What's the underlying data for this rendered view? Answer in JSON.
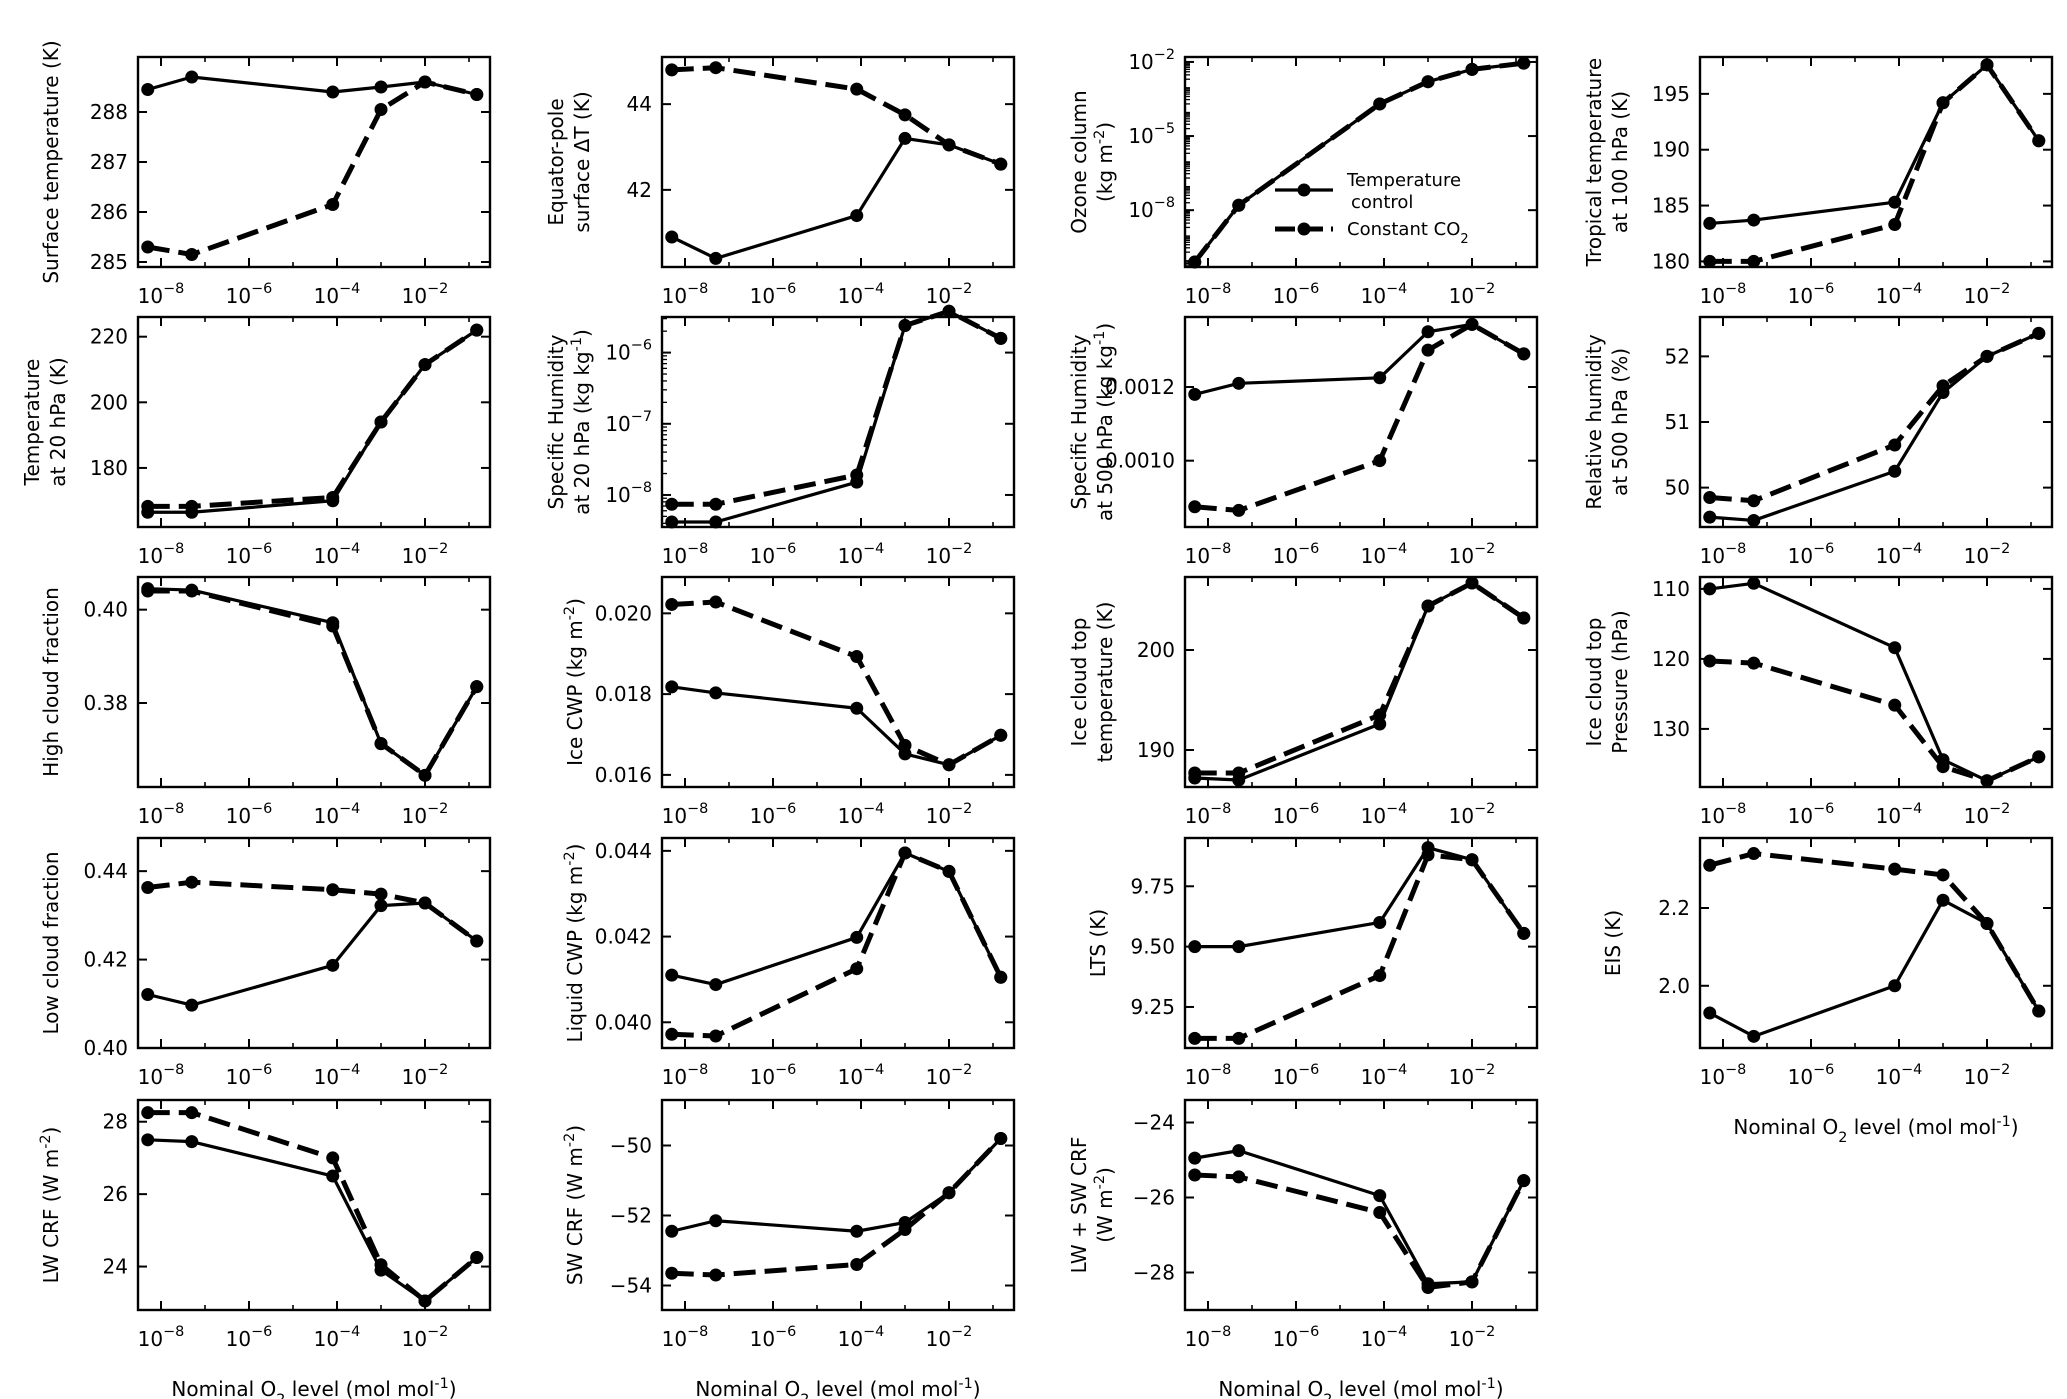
{
  "figure": {
    "legend": {
      "items": [
        {
          "name": "Temperature\ncontrol",
          "style": "solid"
        },
        {
          "name": "Constant CO$2$",
          "style": "dashed"
        }
      ]
    },
    "xlabel": "Nominal O$2$ level (mol mol$^{-1}$)",
    "x_tick_labels": [
      "10^-8",
      "10^-6",
      "10^-4",
      "10^-2"
    ]
  },
  "chart_data": [
    {
      "id": "surface-temperature",
      "type": "line",
      "ylabel": [
        "Surface temperature (K)"
      ],
      "yscale": "linear",
      "ylim": [
        284.9,
        289.1
      ],
      "yticks": [
        285,
        286,
        287,
        288
      ],
      "x": [
        5e-09,
        5e-08,
        8e-05,
        0.001,
        0.01,
        0.15
      ],
      "xlim": [
        3e-09,
        0.3
      ],
      "series": [
        {
          "name": "Temperature control",
          "style": "solid",
          "values": [
            288.45,
            288.7,
            288.4,
            288.5,
            288.6,
            288.35
          ]
        },
        {
          "name": "Constant CO$2$",
          "style": "dashed",
          "values": [
            285.3,
            285.15,
            286.15,
            288.05,
            288.6,
            288.35
          ]
        }
      ]
    },
    {
      "id": "equator-pole-dt",
      "type": "line",
      "ylabel": [
        "Equator-pole",
        "surface ΔT (K)"
      ],
      "yscale": "linear",
      "ylim": [
        40.2,
        45.1
      ],
      "yticks": [
        42,
        44
      ],
      "x": [
        5e-09,
        5e-08,
        8e-05,
        0.001,
        0.01,
        0.15
      ],
      "xlim": [
        3e-09,
        0.3
      ],
      "series": [
        {
          "name": "Temperature control",
          "style": "solid",
          "values": [
            40.9,
            40.4,
            41.4,
            43.2,
            43.05,
            42.6
          ]
        },
        {
          "name": "Constant CO$2$",
          "style": "dashed",
          "values": [
            44.8,
            44.85,
            44.35,
            43.75,
            43.05,
            42.6
          ]
        }
      ]
    },
    {
      "id": "ozone-column",
      "type": "line",
      "ylabel": [
        "Ozone column",
        "(kg m$^{-2}$)"
      ],
      "yscale": "log",
      "ylim": [
        -10.3,
        -1.8
      ],
      "yticks": [
        -8,
        -5,
        -2
      ],
      "x": [
        5e-09,
        5e-08,
        8e-05,
        0.001,
        0.01,
        0.15
      ],
      "xlim": [
        3e-09,
        0.3
      ],
      "series": [
        {
          "name": "Temperature control",
          "style": "solid",
          "values": [
            -10.1,
            -7.8,
            -3.7,
            -2.8,
            -2.3,
            -2.05
          ]
        },
        {
          "name": "Constant CO$2$",
          "style": "dashed",
          "values": [
            -10.1,
            -7.8,
            -3.7,
            -2.8,
            -2.3,
            -2.05
          ]
        }
      ]
    },
    {
      "id": "tropical-temperature-100",
      "type": "line",
      "ylabel": [
        "Tropical temperature",
        "at 100 hPa (K)"
      ],
      "yscale": "linear",
      "ylim": [
        179.5,
        198.3
      ],
      "yticks": [
        180,
        185,
        190,
        195
      ],
      "x": [
        5e-09,
        5e-08,
        8e-05,
        0.001,
        0.01,
        0.15
      ],
      "xlim": [
        3e-09,
        0.3
      ],
      "series": [
        {
          "name": "Temperature control",
          "style": "solid",
          "values": [
            183.4,
            183.7,
            185.3,
            194.2,
            197.6,
            190.8
          ]
        },
        {
          "name": "Constant CO$2$",
          "style": "dashed",
          "values": [
            180.0,
            180.0,
            183.3,
            194.2,
            197.6,
            190.8
          ]
        }
      ]
    },
    {
      "id": "temperature-20hpa",
      "type": "line",
      "ylabel": [
        "Temperature",
        "at 20 hPa (K)"
      ],
      "yscale": "linear",
      "ylim": [
        162,
        226
      ],
      "yticks": [
        180,
        200,
        220
      ],
      "x": [
        5e-09,
        5e-08,
        8e-05,
        0.001,
        0.01,
        0.15
      ],
      "xlim": [
        3e-09,
        0.3
      ],
      "series": [
        {
          "name": "Temperature control",
          "style": "solid",
          "values": [
            166.5,
            166.5,
            170.0,
            194.0,
            211.5,
            222.0
          ]
        },
        {
          "name": "Constant CO$2$",
          "style": "dashed",
          "values": [
            168.3,
            168.3,
            171.0,
            194.0,
            211.5,
            222.0
          ]
        }
      ]
    },
    {
      "id": "specific-humidity-20hpa",
      "type": "line",
      "ylabel": [
        "Specific Humidity",
        "at 20 hPa (kg kg$^{-1}$)"
      ],
      "yscale": "log",
      "ylim": [
        -8.45,
        -5.5
      ],
      "yticks": [
        -8,
        -7,
        -6
      ],
      "x": [
        5e-09,
        5e-08,
        8e-05,
        0.001,
        0.01,
        0.15
      ],
      "xlim": [
        3e-09,
        0.3
      ],
      "series": [
        {
          "name": "Temperature control",
          "style": "solid",
          "values": [
            -8.38,
            -8.38,
            -7.82,
            -5.62,
            -5.42,
            -5.8
          ]
        },
        {
          "name": "Constant CO$2$",
          "style": "dashed",
          "values": [
            -8.13,
            -8.13,
            -7.72,
            -5.62,
            -5.42,
            -5.8
          ]
        }
      ]
    },
    {
      "id": "specific-humidity-500hpa",
      "type": "line",
      "ylabel": [
        "Specific Humidity",
        "at 500 hPa (kg kg$^{-1}$)"
      ],
      "yscale": "linear",
      "ylim": [
        0.00082,
        0.00139
      ],
      "yticks": [
        0.001,
        0.0012
      ],
      "ytick_labels": [
        "0.0010",
        "0.0012"
      ],
      "x": [
        5e-09,
        5e-08,
        8e-05,
        0.001,
        0.01,
        0.15
      ],
      "xlim": [
        3e-09,
        0.3
      ],
      "series": [
        {
          "name": "Temperature control",
          "style": "solid",
          "values": [
            0.00118,
            0.00121,
            0.001225,
            0.00135,
            0.00137,
            0.00129
          ]
        },
        {
          "name": "Constant CO$2$",
          "style": "dashed",
          "values": [
            0.000875,
            0.000865,
            0.001,
            0.0013,
            0.00137,
            0.00129
          ]
        }
      ]
    },
    {
      "id": "relative-humidity-500hpa",
      "type": "line",
      "ylabel": [
        "Relative humidity",
        "at 500 hPa (%)"
      ],
      "yscale": "linear",
      "ylim": [
        49.4,
        52.6
      ],
      "yticks": [
        50,
        51,
        52
      ],
      "x": [
        5e-09,
        5e-08,
        8e-05,
        0.001,
        0.01,
        0.15
      ],
      "xlim": [
        3e-09,
        0.3
      ],
      "series": [
        {
          "name": "Temperature control",
          "style": "solid",
          "values": [
            49.55,
            49.5,
            50.25,
            51.45,
            52.0,
            52.35
          ]
        },
        {
          "name": "Constant CO$2$",
          "style": "dashed",
          "values": [
            49.85,
            49.8,
            50.65,
            51.55,
            52.0,
            52.35
          ]
        }
      ]
    },
    {
      "id": "high-cloud-fraction",
      "type": "line",
      "ylabel": [
        "High cloud fraction"
      ],
      "yscale": "linear",
      "ylim": [
        0.362,
        0.407
      ],
      "yticks": [
        0.38,
        0.4
      ],
      "ytick_labels": [
        "0.38",
        "0.40"
      ],
      "x": [
        5e-09,
        5e-08,
        8e-05,
        0.001,
        0.01,
        0.15
      ],
      "xlim": [
        3e-09,
        0.3
      ],
      "series": [
        {
          "name": "Temperature control",
          "style": "solid",
          "values": [
            0.4045,
            0.4042,
            0.3972,
            0.3713,
            0.3645,
            0.3835
          ]
        },
        {
          "name": "Constant CO$2$",
          "style": "dashed",
          "values": [
            0.404,
            0.404,
            0.3965,
            0.3713,
            0.3645,
            0.3835
          ]
        }
      ]
    },
    {
      "id": "ice-cwp",
      "type": "line",
      "ylabel": [
        "Ice CWP (kg m$^{-2}$)"
      ],
      "yscale": "linear",
      "ylim": [
        0.0157,
        0.0209
      ],
      "yticks": [
        0.016,
        0.018,
        0.02
      ],
      "ytick_labels": [
        "0.016",
        "0.018",
        "0.020"
      ],
      "x": [
        5e-09,
        5e-08,
        8e-05,
        0.001,
        0.01,
        0.15
      ],
      "xlim": [
        3e-09,
        0.3
      ],
      "series": [
        {
          "name": "Temperature control",
          "style": "solid",
          "values": [
            0.01818,
            0.01803,
            0.01765,
            0.01652,
            0.01625,
            0.01698
          ]
        },
        {
          "name": "Constant CO$2$",
          "style": "dashed",
          "values": [
            0.02022,
            0.02028,
            0.01893,
            0.01673,
            0.01625,
            0.01698
          ]
        }
      ]
    },
    {
      "id": "ice-cloud-top-temperature",
      "type": "line",
      "ylabel": [
        "Ice cloud top",
        "temperature (K)"
      ],
      "yscale": "linear",
      "ylim": [
        186.3,
        207.3
      ],
      "yticks": [
        190,
        200
      ],
      "x": [
        5e-09,
        5e-08,
        8e-05,
        0.001,
        0.01,
        0.15
      ],
      "xlim": [
        3e-09,
        0.3
      ],
      "series": [
        {
          "name": "Temperature control",
          "style": "solid",
          "values": [
            187.2,
            187.0,
            192.6,
            204.4,
            206.7,
            203.2
          ]
        },
        {
          "name": "Constant CO$2$",
          "style": "dashed",
          "values": [
            187.7,
            187.7,
            193.5,
            204.4,
            206.7,
            203.2
          ]
        }
      ]
    },
    {
      "id": "ice-cloud-top-pressure",
      "type": "line",
      "ylabel": [
        "Ice cloud top",
        "Pressure (hPa)"
      ],
      "yscale": "linear",
      "yinverted": true,
      "ylim": [
        108.3,
        138.3
      ],
      "yticks": [
        110,
        120,
        130
      ],
      "x": [
        5e-09,
        5e-08,
        8e-05,
        0.001,
        0.01,
        0.15
      ],
      "xlim": [
        3e-09,
        0.3
      ],
      "series": [
        {
          "name": "Temperature control",
          "style": "solid",
          "values": [
            110.0,
            109.2,
            118.4,
            134.4,
            137.4,
            134.0
          ]
        },
        {
          "name": "Constant CO$2$",
          "style": "dashed",
          "values": [
            120.3,
            120.6,
            126.6,
            135.4,
            137.4,
            134.0
          ]
        }
      ]
    },
    {
      "id": "low-cloud-fraction",
      "type": "line",
      "ylabel": [
        "Low cloud fraction"
      ],
      "yscale": "linear",
      "ylim": [
        0.4,
        0.4475
      ],
      "yticks": [
        0.4,
        0.42,
        0.44
      ],
      "ytick_labels": [
        "0.40",
        "0.42",
        "0.44"
      ],
      "x": [
        5e-09,
        5e-08,
        8e-05,
        0.001,
        0.01,
        0.15
      ],
      "xlim": [
        3e-09,
        0.3
      ],
      "series": [
        {
          "name": "Temperature control",
          "style": "solid",
          "values": [
            0.4121,
            0.4097,
            0.4187,
            0.4322,
            0.4328,
            0.4242
          ]
        },
        {
          "name": "Constant CO$2$",
          "style": "dashed",
          "values": [
            0.4363,
            0.4375,
            0.4358,
            0.4348,
            0.4328,
            0.4242
          ]
        }
      ]
    },
    {
      "id": "liquid-cwp",
      "type": "line",
      "ylabel": [
        "Liquid CWP (kg m$^{-2}$)"
      ],
      "yscale": "linear",
      "ylim": [
        0.0394,
        0.0443
      ],
      "yticks": [
        0.04,
        0.042,
        0.044
      ],
      "ytick_labels": [
        "0.040",
        "0.042",
        "0.044"
      ],
      "x": [
        5e-09,
        5e-08,
        8e-05,
        0.001,
        0.01,
        0.15
      ],
      "xlim": [
        3e-09,
        0.3
      ],
      "series": [
        {
          "name": "Temperature control",
          "style": "solid",
          "values": [
            0.0411,
            0.04088,
            0.04198,
            0.04395,
            0.04352,
            0.04105
          ]
        },
        {
          "name": "Constant CO$2$",
          "style": "dashed",
          "values": [
            0.03972,
            0.03968,
            0.04125,
            0.04395,
            0.04352,
            0.04105
          ]
        }
      ]
    },
    {
      "id": "lts",
      "type": "line",
      "ylabel": [
        "LTS (K)"
      ],
      "yscale": "linear",
      "ylim": [
        9.08,
        9.95
      ],
      "yticks": [
        9.25,
        9.5,
        9.75
      ],
      "ytick_labels": [
        "9.25",
        "9.50",
        "9.75"
      ],
      "x": [
        5e-09,
        5e-08,
        8e-05,
        0.001,
        0.01,
        0.15
      ],
      "xlim": [
        3e-09,
        0.3
      ],
      "series": [
        {
          "name": "Temperature control",
          "style": "solid",
          "values": [
            9.5,
            9.5,
            9.6,
            9.91,
            9.86,
            9.555
          ]
        },
        {
          "name": "Constant CO$2$",
          "style": "dashed",
          "values": [
            9.12,
            9.12,
            9.38,
            9.88,
            9.86,
            9.555
          ]
        }
      ]
    },
    {
      "id": "eis",
      "type": "line",
      "ylabel": [
        "EIS (K)"
      ],
      "yscale": "linear",
      "ylim": [
        1.84,
        2.38
      ],
      "yticks": [
        2.0,
        2.2
      ],
      "ytick_labels": [
        "2.0",
        "2.2"
      ],
      "x": [
        5e-09,
        5e-08,
        8e-05,
        0.001,
        0.01,
        0.15
      ],
      "xlim": [
        3e-09,
        0.3
      ],
      "series": [
        {
          "name": "Temperature control",
          "style": "solid",
          "values": [
            1.93,
            1.87,
            2.0,
            2.22,
            2.16,
            1.935
          ]
        },
        {
          "name": "Constant CO$2$",
          "style": "dashed",
          "values": [
            2.31,
            2.34,
            2.3,
            2.285,
            2.16,
            1.935
          ]
        }
      ]
    },
    {
      "id": "lw-crf",
      "type": "line",
      "ylabel": [
        "LW CRF (W m$^{-2}$)"
      ],
      "yscale": "linear",
      "ylim": [
        22.8,
        28.6
      ],
      "yticks": [
        24,
        26,
        28
      ],
      "x": [
        5e-09,
        5e-08,
        8e-05,
        0.001,
        0.01,
        0.15
      ],
      "xlim": [
        3e-09,
        0.3
      ],
      "series": [
        {
          "name": "Temperature control",
          "style": "solid",
          "values": [
            27.5,
            27.45,
            26.5,
            23.9,
            23.05,
            24.25
          ]
        },
        {
          "name": "Constant CO$2$",
          "style": "dashed",
          "values": [
            28.25,
            28.25,
            27.0,
            24.05,
            23.05,
            24.25
          ]
        }
      ]
    },
    {
      "id": "sw-crf",
      "type": "line",
      "ylabel": [
        "SW CRF (W m$^{-2}$)"
      ],
      "yscale": "linear",
      "ylim": [
        -54.7,
        -48.7
      ],
      "yticks": [
        -54,
        -52,
        -50
      ],
      "x": [
        5e-09,
        5e-08,
        8e-05,
        0.001,
        0.01,
        0.15
      ],
      "xlim": [
        3e-09,
        0.3
      ],
      "series": [
        {
          "name": "Temperature control",
          "style": "solid",
          "values": [
            -52.45,
            -52.15,
            -52.45,
            -52.2,
            -51.35,
            -49.8
          ]
        },
        {
          "name": "Constant CO$2$",
          "style": "dashed",
          "values": [
            -53.65,
            -53.7,
            -53.4,
            -52.4,
            -51.35,
            -49.8
          ]
        }
      ]
    },
    {
      "id": "lw-sw-crf",
      "type": "line",
      "ylabel": [
        "LW + SW CRF",
        "(W m$^{-2}$)"
      ],
      "yscale": "linear",
      "ylim": [
        -29.0,
        -23.4
      ],
      "yticks": [
        -28,
        -26,
        -24
      ],
      "x": [
        5e-09,
        5e-08,
        8e-05,
        0.001,
        0.01,
        0.15
      ],
      "xlim": [
        3e-09,
        0.3
      ],
      "series": [
        {
          "name": "Temperature control",
          "style": "solid",
          "values": [
            -24.95,
            -24.75,
            -25.95,
            -28.3,
            -28.25,
            -25.55
          ]
        },
        {
          "name": "Constant CO$2$",
          "style": "dashed",
          "values": [
            -25.4,
            -25.45,
            -26.4,
            -28.4,
            -28.25,
            -25.55
          ]
        }
      ]
    }
  ]
}
